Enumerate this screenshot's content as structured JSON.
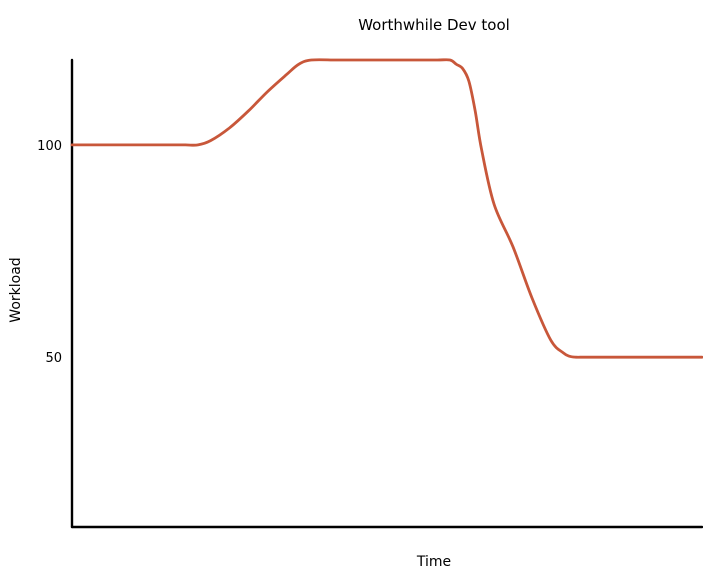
{
  "chart_data": {
    "type": "line",
    "title": "Worthwhile Dev tool",
    "xlabel": "Time",
    "ylabel": "Workload",
    "ylim": [
      10,
      120
    ],
    "yticks": [
      50,
      100
    ],
    "xlim": [
      0,
      100
    ],
    "grid": false,
    "series": [
      {
        "color": "#c8573a",
        "x": [
          0,
          5,
          10,
          15,
          18,
          20,
          22,
          25,
          28,
          31,
          34,
          36,
          38,
          42,
          46,
          50,
          54,
          58,
          60,
          61,
          62,
          63,
          64,
          65,
          67,
          70,
          73,
          76,
          78,
          79,
          80,
          81,
          82,
          86,
          90,
          94,
          100
        ],
        "y": [
          100,
          100,
          100,
          100,
          100,
          100,
          101,
          104,
          108,
          112.5,
          116.5,
          119,
          120,
          120,
          120,
          120,
          120,
          120,
          120,
          119,
          118,
          115,
          108,
          99,
          86,
          76,
          64,
          54,
          51,
          50.2,
          50,
          50,
          50,
          50,
          50,
          50,
          50
        ]
      }
    ]
  }
}
